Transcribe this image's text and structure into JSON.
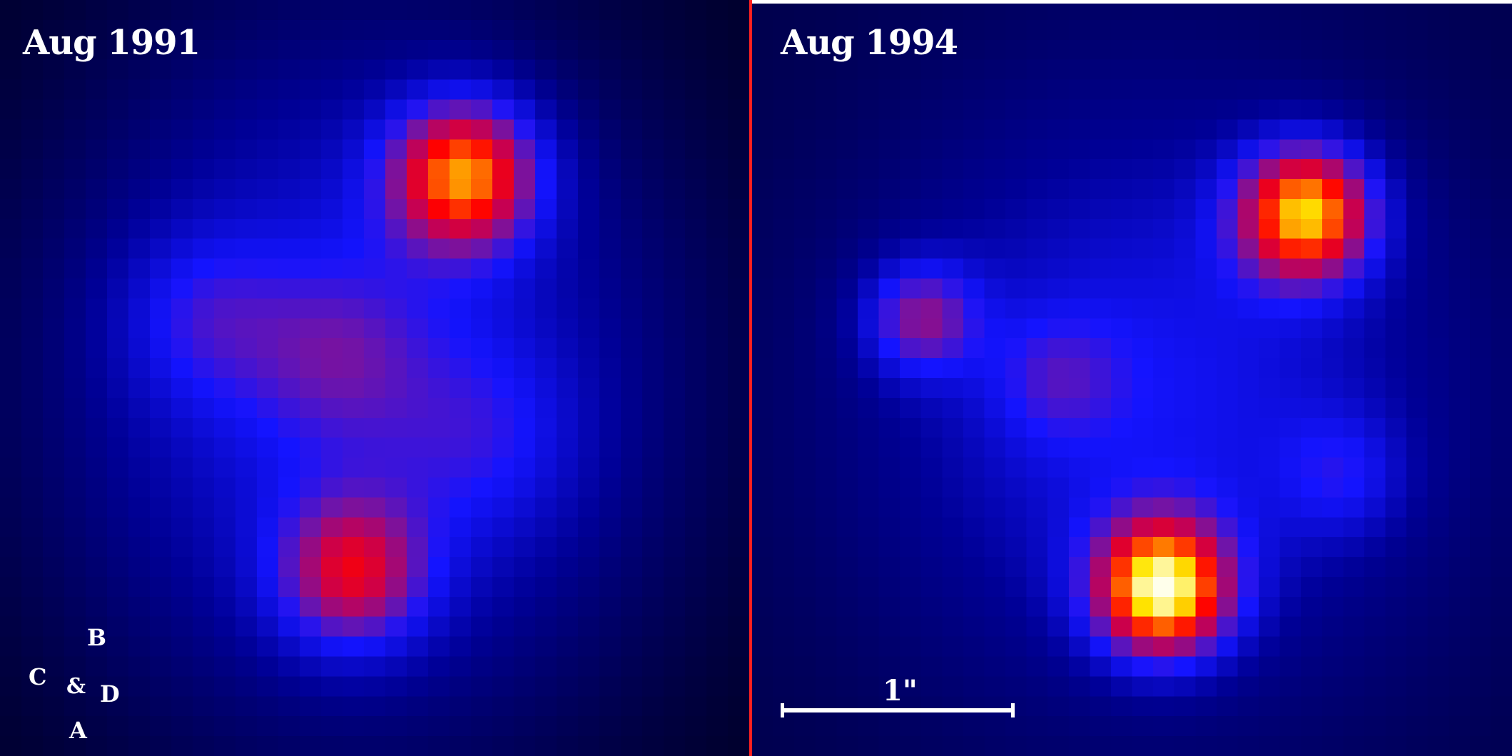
{
  "panels": [
    {
      "label": "Aug 1991",
      "compass": {
        "north": "B",
        "east": "C",
        "star": "&",
        "west": "D",
        "south": "A"
      }
    },
    {
      "label": "Aug 1994",
      "scale_label": "1\""
    }
  ],
  "colors": {
    "divider": "#ff2020",
    "top_line": "#ffffff",
    "label": "#ffffff"
  }
}
